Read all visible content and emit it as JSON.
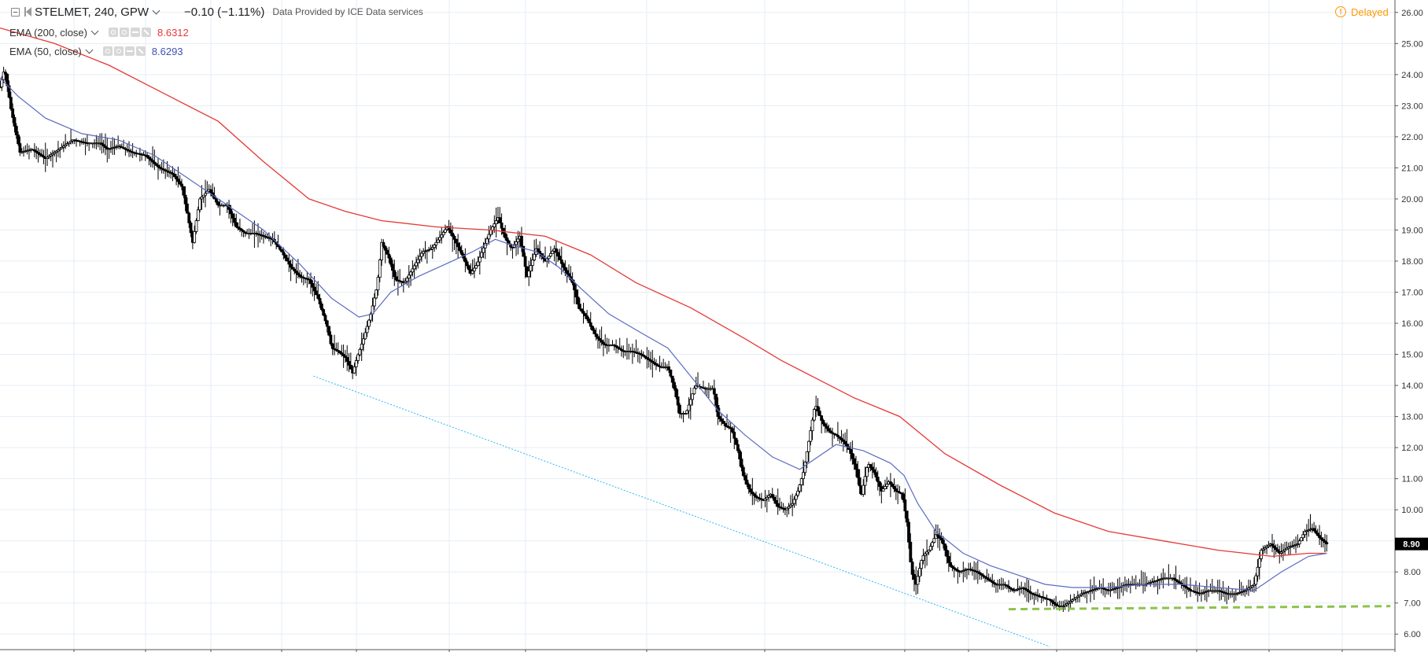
{
  "header": {
    "symbol": "STELMET, 240, GPW",
    "change": "−0.10 (−1.11%)",
    "provider": "Data Provided by ICE Data services",
    "status": "Delayed"
  },
  "indicators": [
    {
      "name": "EMA (200, close)",
      "value": "8.6312",
      "color": "#e53935"
    },
    {
      "name": "EMA (50, close)",
      "value": "8.6293",
      "color": "#3f51b5"
    }
  ],
  "colors": {
    "candles": "#000000",
    "ema200": "#e53935",
    "ema50": "#5c6bc0",
    "grid": "#e6eef5",
    "trendline": "#29b6f6",
    "support": "#8bc34a",
    "price_label_bg": "#000000"
  },
  "chart_data": {
    "type": "candlestick",
    "title": "STELMET, 240, GPW",
    "xlabel": "",
    "ylabel": "",
    "ylim": [
      5.5,
      26.4
    ],
    "y_ticks": [
      "6.00",
      "7.00",
      "8.00",
      "9.00",
      "10.00",
      "11.00",
      "12.00",
      "13.00",
      "14.00",
      "15.00",
      "16.00",
      "17.00",
      "18.00",
      "19.00",
      "20.00",
      "21.00",
      "22.00",
      "23.00",
      "24.00",
      "25.00",
      "26.00"
    ],
    "last_price": "8.90",
    "price_points": [
      [
        0,
        23.6
      ],
      [
        5,
        24.2
      ],
      [
        12,
        22.9
      ],
      [
        22,
        21.5
      ],
      [
        35,
        21.6
      ],
      [
        50,
        21.3
      ],
      [
        65,
        21.6
      ],
      [
        80,
        21.9
      ],
      [
        95,
        21.8
      ],
      [
        110,
        21.8
      ],
      [
        118,
        21.6
      ],
      [
        130,
        21.7
      ],
      [
        145,
        21.5
      ],
      [
        160,
        21.4
      ],
      [
        175,
        21.0
      ],
      [
        190,
        20.8
      ],
      [
        200,
        20.4
      ],
      [
        205,
        19.7
      ],
      [
        212,
        18.6
      ],
      [
        220,
        20.0
      ],
      [
        230,
        20.3
      ],
      [
        240,
        19.8
      ],
      [
        250,
        19.8
      ],
      [
        260,
        19.1
      ],
      [
        270,
        18.9
      ],
      [
        280,
        18.9
      ],
      [
        290,
        18.8
      ],
      [
        300,
        18.7
      ],
      [
        310,
        18.3
      ],
      [
        320,
        17.8
      ],
      [
        330,
        17.5
      ],
      [
        340,
        17.4
      ],
      [
        350,
        16.8
      ],
      [
        360,
        15.9
      ],
      [
        365,
        15.2
      ],
      [
        372,
        15.1
      ],
      [
        380,
        14.9
      ],
      [
        388,
        14.4
      ],
      [
        393,
        14.9
      ],
      [
        400,
        15.5
      ],
      [
        408,
        16.3
      ],
      [
        415,
        17.2
      ],
      [
        420,
        18.6
      ],
      [
        428,
        18.1
      ],
      [
        435,
        17.4
      ],
      [
        445,
        17.3
      ],
      [
        455,
        17.8
      ],
      [
        465,
        18.3
      ],
      [
        475,
        18.4
      ],
      [
        485,
        18.8
      ],
      [
        492,
        19.1
      ],
      [
        500,
        18.7
      ],
      [
        510,
        18.1
      ],
      [
        518,
        17.6
      ],
      [
        525,
        17.9
      ],
      [
        533,
        18.5
      ],
      [
        540,
        19.0
      ],
      [
        548,
        19.4
      ],
      [
        555,
        18.8
      ],
      [
        563,
        18.4
      ],
      [
        572,
        18.8
      ],
      [
        580,
        17.5
      ],
      [
        590,
        18.4
      ],
      [
        600,
        18.0
      ],
      [
        610,
        18.4
      ],
      [
        620,
        17.8
      ],
      [
        630,
        17.3
      ],
      [
        637,
        16.5
      ],
      [
        645,
        16.2
      ],
      [
        655,
        15.6
      ],
      [
        665,
        15.3
      ],
      [
        675,
        15.3
      ],
      [
        685,
        15.1
      ],
      [
        695,
        15.1
      ],
      [
        705,
        15.0
      ],
      [
        715,
        14.8
      ],
      [
        725,
        14.6
      ],
      [
        735,
        14.6
      ],
      [
        742,
        13.9
      ],
      [
        748,
        13.1
      ],
      [
        755,
        13.1
      ],
      [
        765,
        14.0
      ],
      [
        775,
        13.9
      ],
      [
        785,
        13.9
      ],
      [
        790,
        13.0
      ],
      [
        798,
        12.7
      ],
      [
        805,
        12.6
      ],
      [
        812,
        11.9
      ],
      [
        818,
        11.1
      ],
      [
        825,
        10.6
      ],
      [
        832,
        10.4
      ],
      [
        840,
        10.3
      ],
      [
        848,
        10.5
      ],
      [
        856,
        10.1
      ],
      [
        864,
        10.0
      ],
      [
        872,
        10.2
      ],
      [
        878,
        10.6
      ],
      [
        884,
        11.2
      ],
      [
        890,
        12.2
      ],
      [
        897,
        13.4
      ],
      [
        905,
        12.8
      ],
      [
        913,
        12.5
      ],
      [
        920,
        12.4
      ],
      [
        928,
        12.2
      ],
      [
        935,
        11.9
      ],
      [
        942,
        11.3
      ],
      [
        948,
        10.5
      ],
      [
        955,
        11.5
      ],
      [
        962,
        11.2
      ],
      [
        970,
        10.6
      ],
      [
        978,
        10.9
      ],
      [
        986,
        10.6
      ],
      [
        993,
        10.5
      ],
      [
        998,
        9.6
      ],
      [
        1003,
        8.0
      ],
      [
        1008,
        7.6
      ],
      [
        1015,
        8.5
      ],
      [
        1022,
        8.7
      ],
      [
        1030,
        9.2
      ],
      [
        1037,
        9.0
      ],
      [
        1045,
        8.2
      ],
      [
        1055,
        8.0
      ],
      [
        1065,
        8.1
      ],
      [
        1075,
        8.0
      ],
      [
        1085,
        7.8
      ],
      [
        1095,
        7.6
      ],
      [
        1105,
        7.6
      ],
      [
        1115,
        7.4
      ],
      [
        1125,
        7.5
      ],
      [
        1135,
        7.3
      ],
      [
        1145,
        7.2
      ],
      [
        1155,
        7.1
      ],
      [
        1163,
        6.9
      ],
      [
        1170,
        6.9
      ],
      [
        1180,
        7.1
      ],
      [
        1190,
        7.3
      ],
      [
        1200,
        7.4
      ],
      [
        1210,
        7.5
      ],
      [
        1220,
        7.4
      ],
      [
        1230,
        7.5
      ],
      [
        1240,
        7.6
      ],
      [
        1250,
        7.6
      ],
      [
        1260,
        7.6
      ],
      [
        1270,
        7.7
      ],
      [
        1280,
        7.8
      ],
      [
        1290,
        7.8
      ],
      [
        1300,
        7.6
      ],
      [
        1310,
        7.4
      ],
      [
        1320,
        7.3
      ],
      [
        1330,
        7.4
      ],
      [
        1340,
        7.4
      ],
      [
        1350,
        7.3
      ],
      [
        1360,
        7.3
      ],
      [
        1370,
        7.4
      ],
      [
        1380,
        7.6
      ],
      [
        1388,
        8.7
      ],
      [
        1398,
        8.9
      ],
      [
        1408,
        8.6
      ],
      [
        1418,
        8.8
      ],
      [
        1428,
        8.9
      ],
      [
        1436,
        9.3
      ],
      [
        1444,
        9.4
      ],
      [
        1452,
        9.1
      ],
      [
        1460,
        8.9
      ]
    ],
    "series": [
      {
        "name": "EMA (200, close)",
        "points": [
          [
            0,
            25.5
          ],
          [
            60,
            25.0
          ],
          [
            120,
            24.3
          ],
          [
            180,
            23.4
          ],
          [
            240,
            22.5
          ],
          [
            290,
            21.2
          ],
          [
            340,
            20.0
          ],
          [
            380,
            19.6
          ],
          [
            420,
            19.3
          ],
          [
            480,
            19.1
          ],
          [
            540,
            19.0
          ],
          [
            600,
            18.8
          ],
          [
            650,
            18.2
          ],
          [
            700,
            17.3
          ],
          [
            760,
            16.5
          ],
          [
            820,
            15.5
          ],
          [
            860,
            14.8
          ],
          [
            900,
            14.2
          ],
          [
            940,
            13.6
          ],
          [
            990,
            13.0
          ],
          [
            1040,
            11.8
          ],
          [
            1100,
            10.8
          ],
          [
            1160,
            9.9
          ],
          [
            1220,
            9.3
          ],
          [
            1280,
            9.0
          ],
          [
            1340,
            8.7
          ],
          [
            1400,
            8.5
          ],
          [
            1440,
            8.6
          ],
          [
            1460,
            8.6
          ]
        ]
      },
      {
        "name": "EMA (50, close)",
        "points": [
          [
            0,
            23.9
          ],
          [
            20,
            23.3
          ],
          [
            50,
            22.6
          ],
          [
            90,
            22.1
          ],
          [
            130,
            21.9
          ],
          [
            170,
            21.4
          ],
          [
            210,
            20.6
          ],
          [
            250,
            19.8
          ],
          [
            290,
            19.0
          ],
          [
            330,
            17.9
          ],
          [
            365,
            16.8
          ],
          [
            395,
            16.2
          ],
          [
            410,
            16.3
          ],
          [
            430,
            17.0
          ],
          [
            460,
            17.5
          ],
          [
            490,
            17.9
          ],
          [
            520,
            18.3
          ],
          [
            545,
            18.7
          ],
          [
            565,
            18.5
          ],
          [
            590,
            18.3
          ],
          [
            615,
            17.8
          ],
          [
            640,
            17.1
          ],
          [
            670,
            16.3
          ],
          [
            705,
            15.7
          ],
          [
            735,
            15.2
          ],
          [
            760,
            14.3
          ],
          [
            790,
            13.2
          ],
          [
            820,
            12.4
          ],
          [
            850,
            11.7
          ],
          [
            880,
            11.3
          ],
          [
            900,
            11.7
          ],
          [
            920,
            12.1
          ],
          [
            950,
            11.9
          ],
          [
            980,
            11.5
          ],
          [
            995,
            11.1
          ],
          [
            1010,
            10.2
          ],
          [
            1030,
            9.3
          ],
          [
            1060,
            8.6
          ],
          [
            1090,
            8.2
          ],
          [
            1120,
            7.9
          ],
          [
            1150,
            7.6
          ],
          [
            1180,
            7.5
          ],
          [
            1220,
            7.5
          ],
          [
            1260,
            7.6
          ],
          [
            1300,
            7.6
          ],
          [
            1340,
            7.5
          ],
          [
            1380,
            7.4
          ],
          [
            1410,
            8.0
          ],
          [
            1440,
            8.5
          ],
          [
            1460,
            8.6
          ]
        ]
      }
    ],
    "annotations": [
      {
        "type": "trendline",
        "from": [
          345,
          14.3
        ],
        "to": [
          1155,
          5.6
        ]
      },
      {
        "type": "support",
        "from": [
          1110,
          6.8
        ],
        "to": [
          1530,
          6.9
        ]
      }
    ],
    "grid": true
  }
}
